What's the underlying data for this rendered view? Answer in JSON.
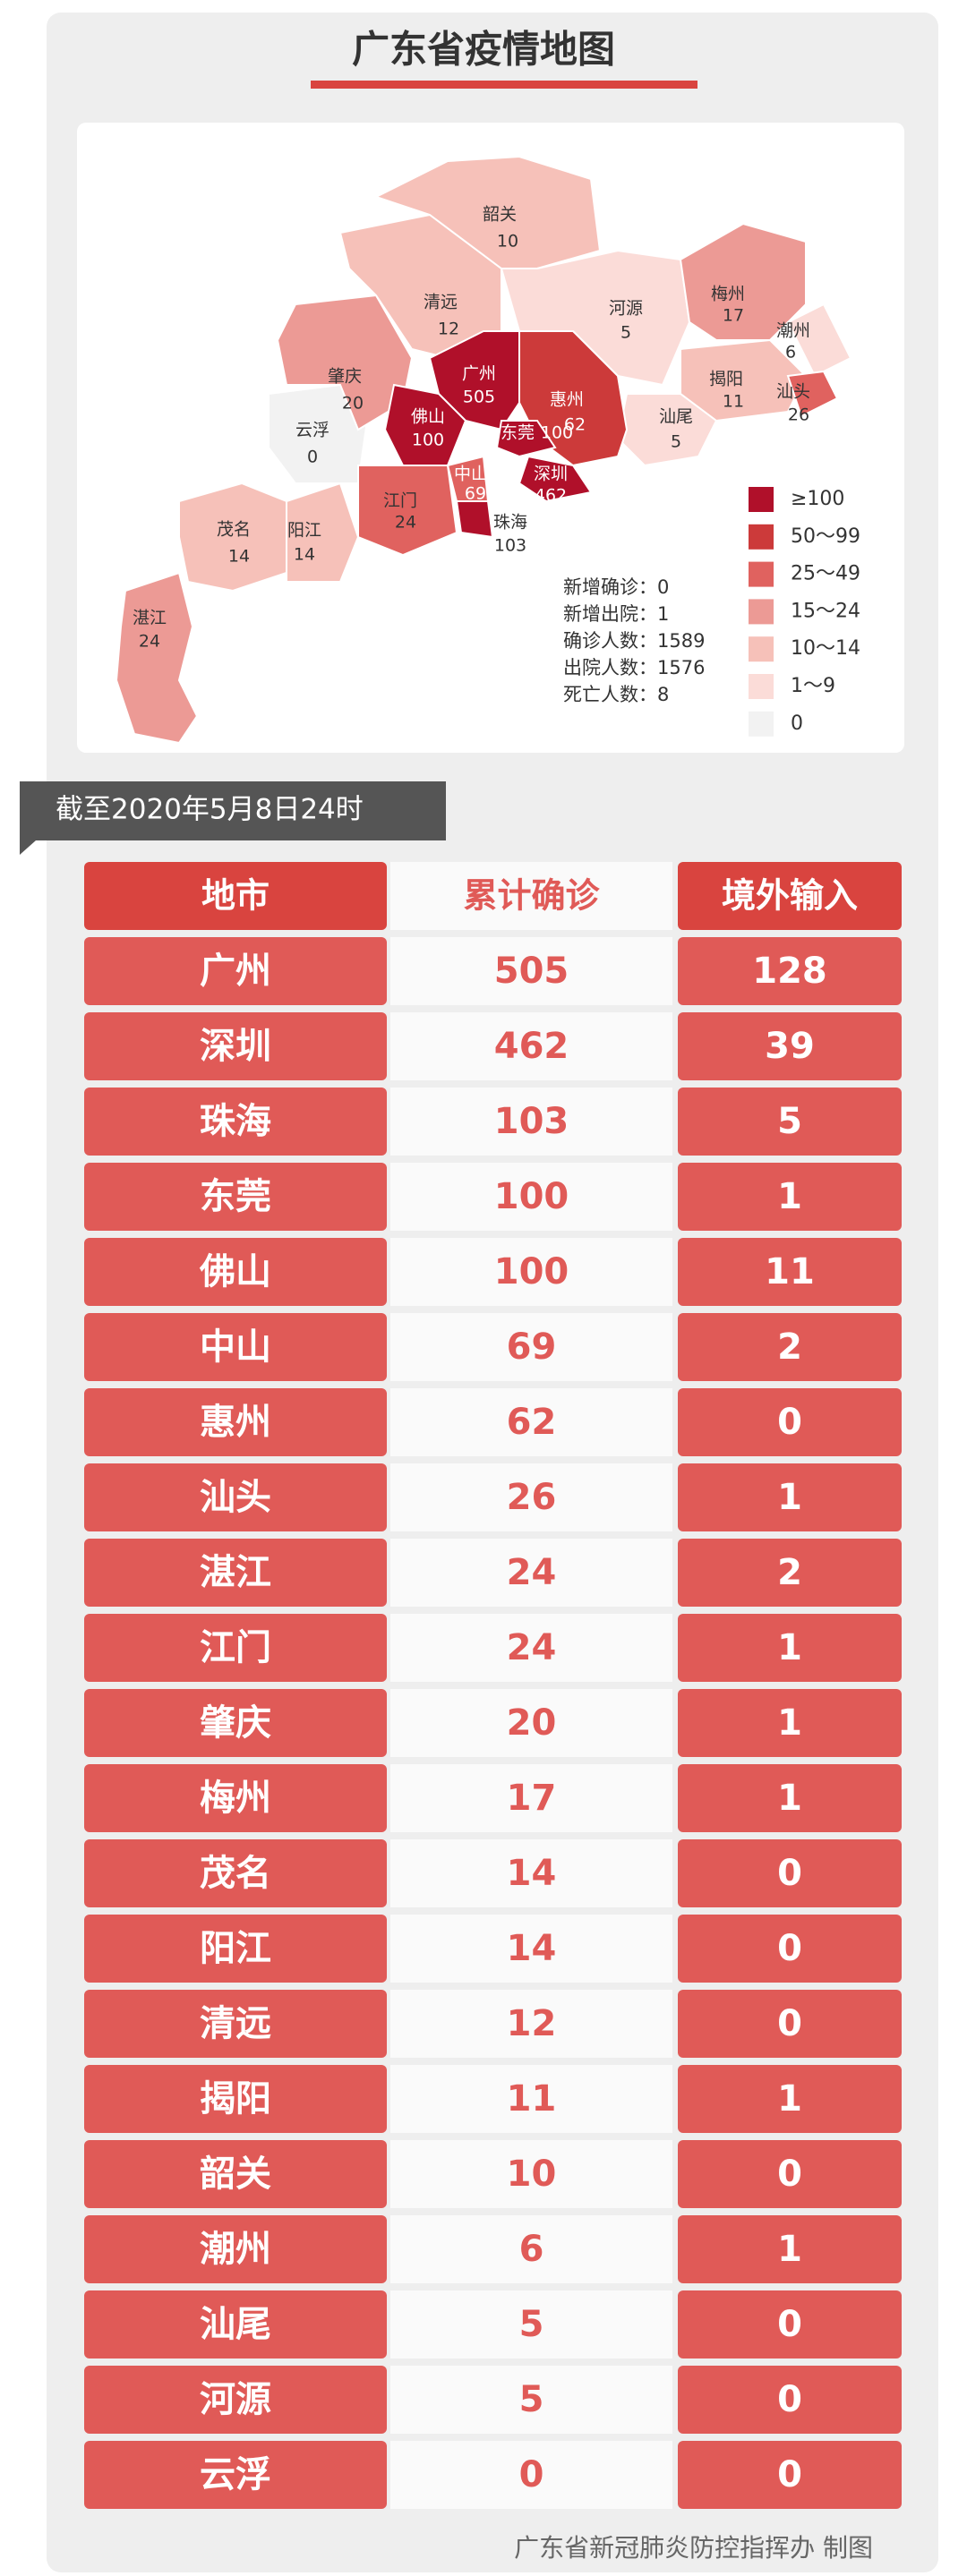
{
  "header": {
    "title": "广东省疫情地图"
  },
  "map": {
    "labels": [
      {
        "name": "韶关",
        "value": 10
      },
      {
        "name": "清远",
        "value": 12
      },
      {
        "name": "河源",
        "value": 5
      },
      {
        "name": "梅州",
        "value": 17
      },
      {
        "name": "潮州",
        "value": 6
      },
      {
        "name": "揭阳",
        "value": 11
      },
      {
        "name": "汕头",
        "value": 26
      },
      {
        "name": "肇庆",
        "value": 20
      },
      {
        "name": "广州",
        "value": 505
      },
      {
        "name": "惠州",
        "value": 62
      },
      {
        "name": "佛山",
        "value": 100
      },
      {
        "name": "东莞",
        "value": 100
      },
      {
        "name": "汕尾",
        "value": 5
      },
      {
        "name": "云浮",
        "value": 0
      },
      {
        "name": "深圳",
        "value": 462
      },
      {
        "name": "中山",
        "value": 69
      },
      {
        "name": "江门",
        "value": 24
      },
      {
        "name": "珠海",
        "value": 103
      },
      {
        "name": "茂名",
        "value": 14
      },
      {
        "name": "阳江",
        "value": 14
      },
      {
        "name": "湛江",
        "value": 24
      }
    ],
    "stats": [
      {
        "label": "新增确诊：",
        "value": 0
      },
      {
        "label": "新增出院：",
        "value": 1
      },
      {
        "label": "确诊人数：",
        "value": 1589
      },
      {
        "label": "出院人数：",
        "value": 1576
      },
      {
        "label": "死亡人数：",
        "value": 8
      }
    ],
    "legend": [
      {
        "label": "≥100",
        "color": "#b0102a"
      },
      {
        "label": "50～99",
        "color": "#cc3a3a"
      },
      {
        "label": "25～49",
        "color": "#e0625f"
      },
      {
        "label": "15～24",
        "color": "#ec9a95"
      },
      {
        "label": "10～14",
        "color": "#f6c1b9"
      },
      {
        "label": "1～9",
        "color": "#fbdcd8"
      },
      {
        "label": "0",
        "color": "#f2f2f2"
      }
    ]
  },
  "date": "截至2020年5月8日24时",
  "table": {
    "headers": [
      "地市",
      "累计确诊",
      "境外输入"
    ],
    "rows": [
      [
        "广州",
        505,
        128
      ],
      [
        "深圳",
        462,
        39
      ],
      [
        "珠海",
        103,
        5
      ],
      [
        "东莞",
        100,
        1
      ],
      [
        "佛山",
        100,
        11
      ],
      [
        "中山",
        69,
        2
      ],
      [
        "惠州",
        62,
        0
      ],
      [
        "汕头",
        26,
        1
      ],
      [
        "湛江",
        24,
        2
      ],
      [
        "江门",
        24,
        1
      ],
      [
        "肇庆",
        20,
        1
      ],
      [
        "梅州",
        17,
        1
      ],
      [
        "茂名",
        14,
        0
      ],
      [
        "阳江",
        14,
        0
      ],
      [
        "清远",
        12,
        0
      ],
      [
        "揭阳",
        11,
        1
      ],
      [
        "韶关",
        10,
        0
      ],
      [
        "潮州",
        6,
        1
      ],
      [
        "汕尾",
        5,
        0
      ],
      [
        "河源",
        5,
        0
      ],
      [
        "云浮",
        0,
        0
      ]
    ]
  },
  "footer": "广东省新冠肺炎防控指挥办 制图"
}
